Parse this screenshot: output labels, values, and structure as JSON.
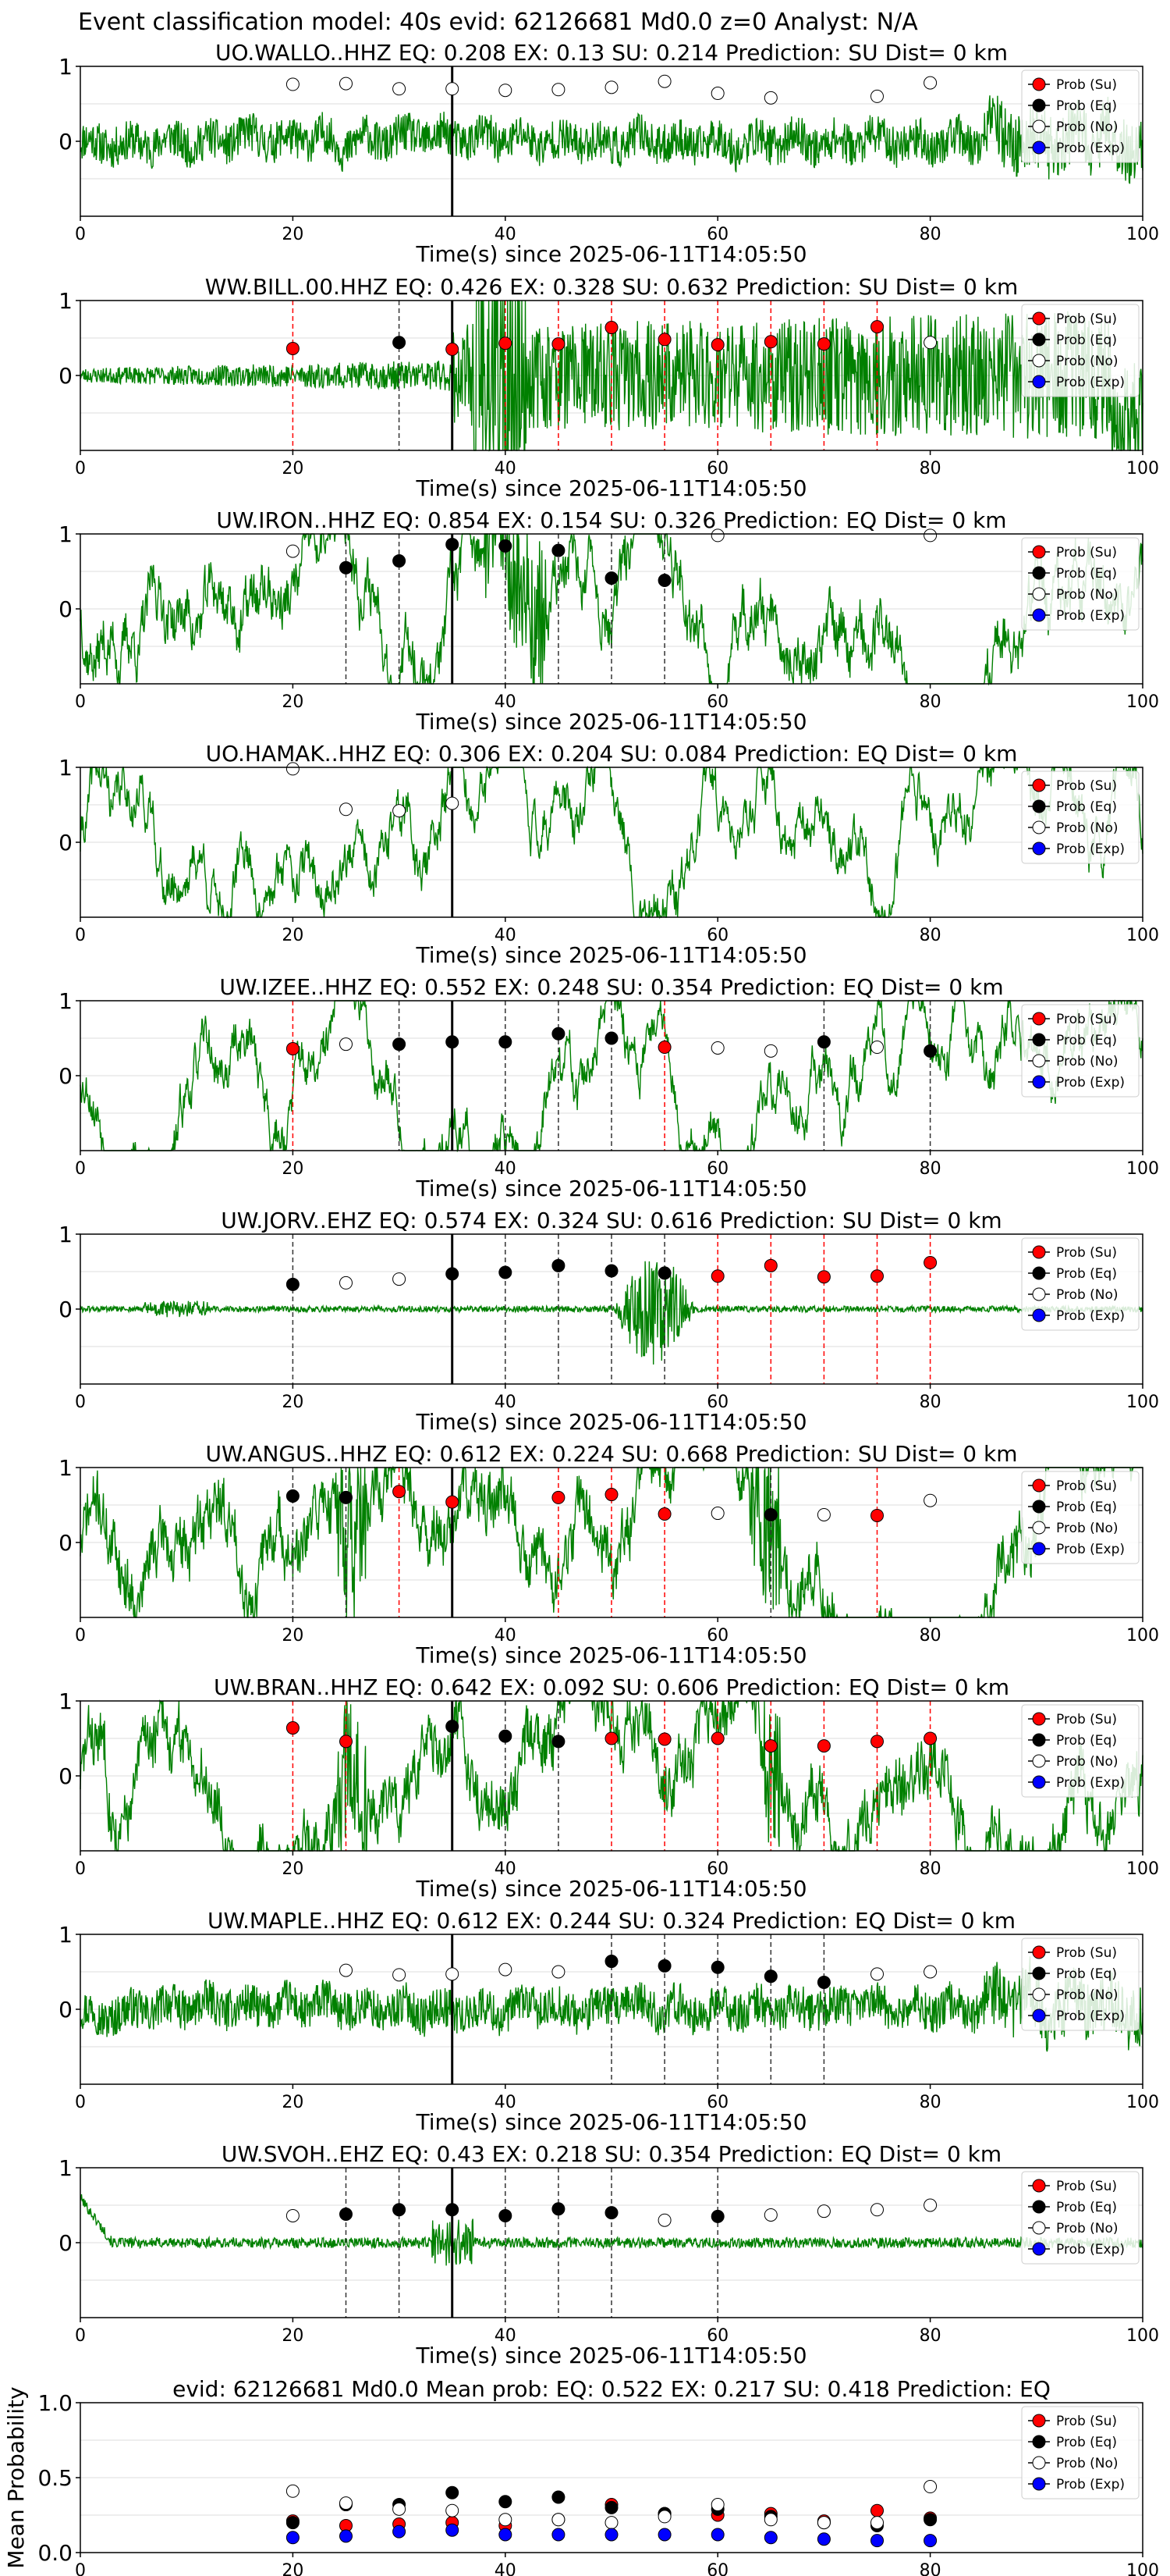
{
  "figure_title": "Event classification model: 40s evid: 62126681 Md0.0 z=0 Analyst: N/A",
  "legend_labels": [
    "Prob (Su)",
    "Prob (Eq)",
    "Prob (No)",
    "Prob (Exp)"
  ],
  "colors": {
    "su": "#ff0000",
    "eq": "#000000",
    "no": "#ffffff",
    "exp": "#0000ff",
    "trace": "#008000",
    "grid": "#dddddd"
  },
  "chart_data": [
    {
      "type": "scatter",
      "panel": "waveform",
      "title": "UO.WALLO..HHZ   EQ: 0.208  EX: 0.13  SU: 0.214   Prediction: SU    Dist= 0 km",
      "xlabel": "Time(s) since 2025-06-11T14:05:50",
      "ylabel": "",
      "xlim": [
        0,
        100
      ],
      "ylim": [
        -1,
        1
      ],
      "xticks": [
        "0",
        "20",
        "40",
        "60",
        "80"
      ],
      "xtick_max": "100",
      "yticks": [
        "1",
        "0"
      ],
      "pick_time": 35,
      "grid": true,
      "legend": "top-right",
      "trace_seed": 11,
      "trace_style": "noise",
      "series": [
        {
          "name": "Prob (No)",
          "x": [
            20,
            25,
            30,
            35,
            40,
            45,
            50,
            55,
            60,
            65,
            75,
            80
          ],
          "values": [
            0.76,
            0.77,
            0.7,
            0.7,
            0.68,
            0.69,
            0.72,
            0.8,
            0.64,
            0.58,
            0.6,
            0.78
          ]
        }
      ],
      "vlines_su": [],
      "vlines_eq": []
    },
    {
      "type": "scatter",
      "panel": "waveform",
      "title": "WW.BILL.00.HHZ   EQ: 0.426  EX: 0.328  SU: 0.632   Prediction: SU    Dist= 0 km",
      "xlabel": "Time(s) since 2025-06-11T14:05:50",
      "ylabel": "",
      "xlim": [
        0,
        100
      ],
      "ylim": [
        -1,
        1
      ],
      "xticks": [
        "0",
        "20",
        "40",
        "60",
        "80"
      ],
      "xtick_max": "100",
      "yticks": [
        "1",
        "0"
      ],
      "pick_time": 35,
      "grid": true,
      "legend": "top-right",
      "trace_seed": 23,
      "trace_style": "growing",
      "series": [
        {
          "name": "Prob (Su)",
          "x": [
            20,
            35,
            40,
            45,
            50,
            55,
            60,
            65,
            70,
            75
          ],
          "values": [
            0.36,
            0.35,
            0.43,
            0.42,
            0.64,
            0.48,
            0.41,
            0.45,
            0.42,
            0.65
          ]
        },
        {
          "name": "Prob (Eq)",
          "x": [
            30
          ],
          "values": [
            0.44
          ]
        },
        {
          "name": "Prob (No)",
          "x": [
            80
          ],
          "values": [
            0.44
          ]
        }
      ],
      "vlines_su": [
        20,
        40,
        45,
        50,
        55,
        60,
        65,
        70,
        75
      ],
      "vlines_eq": [
        30
      ]
    },
    {
      "type": "scatter",
      "panel": "waveform",
      "title": "UW.IRON..HHZ   EQ: 0.854  EX: 0.154  SU: 0.326   Prediction: EQ    Dist= 0 km",
      "xlabel": "Time(s) since 2025-06-11T14:05:50",
      "ylabel": "",
      "xlim": [
        0,
        100
      ],
      "ylim": [
        -1,
        1
      ],
      "xticks": [
        "0",
        "20",
        "40",
        "60",
        "80"
      ],
      "xtick_max": "100",
      "yticks": [
        "1",
        "0"
      ],
      "pick_time": 35,
      "grid": true,
      "legend": "top-right",
      "trace_seed": 37,
      "trace_style": "burst40",
      "series": [
        {
          "name": "Prob (Eq)",
          "x": [
            25,
            30,
            35,
            40,
            45,
            50,
            55
          ],
          "values": [
            0.55,
            0.64,
            0.86,
            0.84,
            0.78,
            0.41,
            0.38
          ]
        },
        {
          "name": "Prob (No)",
          "x": [
            20,
            60,
            80
          ],
          "values": [
            0.77,
            0.98,
            0.98
          ]
        }
      ],
      "vlines_su": [],
      "vlines_eq": [
        25,
        30,
        40,
        45,
        50,
        55
      ]
    },
    {
      "type": "scatter",
      "panel": "waveform",
      "title": "UO.HAMAK..HHZ   EQ: 0.306  EX: 0.204  SU: 0.084   Prediction: EQ    Dist= 0 km",
      "xlabel": "Time(s) since 2025-06-11T14:05:50",
      "ylabel": "",
      "xlim": [
        0,
        100
      ],
      "ylim": [
        -1,
        1
      ],
      "xticks": [
        "0",
        "20",
        "40",
        "60",
        "80"
      ],
      "xtick_max": "100",
      "yticks": [
        "1",
        "0"
      ],
      "pick_time": 35,
      "grid": true,
      "legend": "top-right",
      "trace_seed": 41,
      "trace_style": "wavy",
      "series": [
        {
          "name": "Prob (No)",
          "x": [
            20,
            25,
            30,
            35
          ],
          "values": [
            0.98,
            0.44,
            0.42,
            0.52
          ]
        }
      ],
      "vlines_su": [],
      "vlines_eq": []
    },
    {
      "type": "scatter",
      "panel": "waveform",
      "title": "UW.IZEE..HHZ   EQ: 0.552  EX: 0.248  SU: 0.354   Prediction: EQ    Dist= 0 km",
      "xlabel": "Time(s) since 2025-06-11T14:05:50",
      "ylabel": "",
      "xlim": [
        0,
        100
      ],
      "ylim": [
        -1,
        1
      ],
      "xticks": [
        "0",
        "20",
        "40",
        "60",
        "80"
      ],
      "xtick_max": "100",
      "yticks": [
        "1",
        "0"
      ],
      "pick_time": 35,
      "grid": true,
      "legend": "top-right",
      "trace_seed": 53,
      "trace_style": "wavy",
      "series": [
        {
          "name": "Prob (Su)",
          "x": [
            20,
            55
          ],
          "values": [
            0.36,
            0.38
          ]
        },
        {
          "name": "Prob (Eq)",
          "x": [
            30,
            35,
            40,
            45,
            50,
            70,
            80
          ],
          "values": [
            0.42,
            0.45,
            0.45,
            0.56,
            0.5,
            0.45,
            0.33
          ]
        },
        {
          "name": "Prob (No)",
          "x": [
            25,
            60,
            65,
            75
          ],
          "values": [
            0.42,
            0.37,
            0.33,
            0.38
          ]
        }
      ],
      "vlines_su": [
        20,
        55
      ],
      "vlines_eq": [
        30,
        40,
        45,
        50,
        70,
        80
      ]
    },
    {
      "type": "scatter",
      "panel": "waveform",
      "title": "UW.JORV..EHZ   EQ: 0.574  EX: 0.324  SU: 0.616   Prediction: SU    Dist= 0 km",
      "xlabel": "Time(s) since 2025-06-11T14:05:50",
      "ylabel": "",
      "xlim": [
        0,
        100
      ],
      "ylim": [
        -1,
        1
      ],
      "xticks": [
        "0",
        "20",
        "40",
        "60",
        "80"
      ],
      "xtick_max": "100",
      "yticks": [
        "1",
        "0"
      ],
      "pick_time": 35,
      "grid": true,
      "legend": "top-right",
      "trace_seed": 61,
      "trace_style": "quiet55",
      "series": [
        {
          "name": "Prob (Su)",
          "x": [
            60,
            65,
            70,
            75,
            80
          ],
          "values": [
            0.44,
            0.58,
            0.43,
            0.44,
            0.62
          ]
        },
        {
          "name": "Prob (Eq)",
          "x": [
            20,
            35,
            40,
            45,
            50,
            55
          ],
          "values": [
            0.33,
            0.47,
            0.49,
            0.58,
            0.51,
            0.48
          ]
        },
        {
          "name": "Prob (No)",
          "x": [
            25,
            30
          ],
          "values": [
            0.35,
            0.4
          ]
        }
      ],
      "vlines_su": [
        60,
        65,
        70,
        75,
        80
      ],
      "vlines_eq": [
        20,
        40,
        45,
        50,
        55
      ]
    },
    {
      "type": "scatter",
      "panel": "waveform",
      "title": "UW.ANGUS..HHZ   EQ: 0.612  EX: 0.224  SU: 0.668   Prediction: SU    Dist= 0 km",
      "xlabel": "Time(s) since 2025-06-11T14:05:50",
      "ylabel": "",
      "xlim": [
        0,
        100
      ],
      "ylim": [
        -1,
        1
      ],
      "xticks": [
        "0",
        "20",
        "40",
        "60",
        "80"
      ],
      "xtick_max": "100",
      "yticks": [
        "1",
        "0"
      ],
      "pick_time": 35,
      "grid": true,
      "legend": "top-right",
      "trace_seed": 71,
      "trace_style": "noisywavy",
      "series": [
        {
          "name": "Prob (Su)",
          "x": [
            30,
            35,
            45,
            50,
            55,
            75
          ],
          "values": [
            0.68,
            0.54,
            0.6,
            0.64,
            0.38,
            0.36
          ]
        },
        {
          "name": "Prob (Eq)",
          "x": [
            20,
            25,
            65
          ],
          "values": [
            0.62,
            0.6,
            0.37
          ]
        },
        {
          "name": "Prob (No)",
          "x": [
            60,
            70,
            80
          ],
          "values": [
            0.39,
            0.37,
            0.56
          ]
        }
      ],
      "vlines_su": [
        30,
        45,
        50,
        55,
        75
      ],
      "vlines_eq": [
        20,
        25,
        65
      ]
    },
    {
      "type": "scatter",
      "panel": "waveform",
      "title": "UW.BRAN..HHZ   EQ: 0.642  EX: 0.092  SU: 0.606   Prediction: EQ    Dist= 0 km",
      "xlabel": "Time(s) since 2025-06-11T14:05:50",
      "ylabel": "",
      "xlim": [
        0,
        100
      ],
      "ylim": [
        -1,
        1
      ],
      "xticks": [
        "0",
        "20",
        "40",
        "60",
        "80"
      ],
      "xtick_max": "100",
      "yticks": [
        "1",
        "0"
      ],
      "pick_time": 35,
      "grid": true,
      "legend": "top-right",
      "trace_seed": 83,
      "trace_style": "noisywavy",
      "series": [
        {
          "name": "Prob (Su)",
          "x": [
            20,
            25,
            50,
            55,
            60,
            65,
            70,
            75,
            80
          ],
          "values": [
            0.64,
            0.46,
            0.5,
            0.49,
            0.5,
            0.4,
            0.4,
            0.46,
            0.5
          ]
        },
        {
          "name": "Prob (Eq)",
          "x": [
            35,
            40,
            45
          ],
          "values": [
            0.66,
            0.53,
            0.46
          ]
        }
      ],
      "vlines_su": [
        20,
        25,
        50,
        55,
        60,
        65,
        70,
        75,
        80
      ],
      "vlines_eq": [
        40,
        45
      ]
    },
    {
      "type": "scatter",
      "panel": "waveform",
      "title": "UW.MAPLE..HHZ   EQ: 0.612  EX: 0.244  SU: 0.324   Prediction: EQ    Dist= 0 km",
      "xlabel": "Time(s) since 2025-06-11T14:05:50",
      "ylabel": "",
      "xlim": [
        0,
        100
      ],
      "ylim": [
        -1,
        1
      ],
      "xticks": [
        "0",
        "20",
        "40",
        "60",
        "80"
      ],
      "xtick_max": "100",
      "yticks": [
        "1",
        "0"
      ],
      "pick_time": 35,
      "grid": true,
      "legend": "top-right",
      "trace_seed": 97,
      "trace_style": "noise",
      "series": [
        {
          "name": "Prob (Eq)",
          "x": [
            50,
            55,
            60,
            65,
            70
          ],
          "values": [
            0.64,
            0.58,
            0.56,
            0.44,
            0.36
          ]
        },
        {
          "name": "Prob (No)",
          "x": [
            25,
            30,
            35,
            40,
            45,
            75,
            80
          ],
          "values": [
            0.52,
            0.46,
            0.47,
            0.53,
            0.5,
            0.47,
            0.5
          ]
        }
      ],
      "vlines_su": [],
      "vlines_eq": [
        50,
        55,
        60,
        65,
        70
      ]
    },
    {
      "type": "scatter",
      "panel": "waveform",
      "title": "UW.SVOH..EHZ   EQ: 0.43  EX: 0.218  SU: 0.354   Prediction: EQ    Dist= 0 km",
      "xlabel": "Time(s) since 2025-06-11T14:05:50",
      "ylabel": "",
      "xlim": [
        0,
        100
      ],
      "ylim": [
        -1,
        1
      ],
      "xticks": [
        "0",
        "20",
        "40",
        "60",
        "80"
      ],
      "xtick_max": "100",
      "yticks": [
        "1",
        "0"
      ],
      "pick_time": 35,
      "grid": true,
      "legend": "top-right",
      "trace_seed": 101,
      "trace_style": "quiet",
      "series": [
        {
          "name": "Prob (Eq)",
          "x": [
            25,
            30,
            35,
            40,
            45,
            50,
            60
          ],
          "values": [
            0.38,
            0.44,
            0.44,
            0.36,
            0.45,
            0.4,
            0.35
          ]
        },
        {
          "name": "Prob (No)",
          "x": [
            20,
            55,
            65,
            70,
            75,
            80
          ],
          "values": [
            0.36,
            0.3,
            0.37,
            0.42,
            0.44,
            0.5
          ]
        }
      ],
      "vlines_su": [],
      "vlines_eq": [
        25,
        30,
        40,
        45,
        50,
        60
      ]
    },
    {
      "type": "scatter",
      "panel": "mean",
      "title": "evid: 62126681  Md0.0   Mean prob:   EQ: 0.522  EX: 0.217  SU: 0.418   Prediction: EQ",
      "xlabel": "",
      "ylabel": "Mean Probability",
      "xlim": [
        0,
        100
      ],
      "ylim": [
        0,
        1
      ],
      "xticks": [
        "0",
        "20",
        "40",
        "60",
        "80"
      ],
      "xtick_max": "100",
      "yticks": [
        "1.0",
        "0.5",
        "0.0"
      ],
      "grid": true,
      "legend": "top-right",
      "series": [
        {
          "name": "Prob (Su)",
          "x": [
            20,
            25,
            30,
            35,
            40,
            45,
            50,
            55,
            60,
            65,
            70,
            75,
            80
          ],
          "values": [
            0.21,
            0.18,
            0.19,
            0.2,
            0.18,
            0.22,
            0.32,
            0.26,
            0.25,
            0.26,
            0.21,
            0.28,
            0.23
          ]
        },
        {
          "name": "Prob (Eq)",
          "x": [
            20,
            25,
            30,
            35,
            40,
            45,
            50,
            55,
            60,
            65,
            70,
            75,
            80
          ],
          "values": [
            0.2,
            0.32,
            0.32,
            0.4,
            0.34,
            0.37,
            0.3,
            0.26,
            0.29,
            0.24,
            0.2,
            0.18,
            0.22
          ]
        },
        {
          "name": "Prob (No)",
          "x": [
            20,
            25,
            30,
            35,
            40,
            45,
            50,
            55,
            60,
            65,
            70,
            75,
            80
          ],
          "values": [
            0.41,
            0.33,
            0.29,
            0.28,
            0.22,
            0.22,
            0.2,
            0.24,
            0.32,
            0.22,
            0.2,
            0.2,
            0.44
          ]
        },
        {
          "name": "Prob (Exp)",
          "x": [
            20,
            25,
            30,
            35,
            40,
            45,
            50,
            55,
            60,
            65,
            70,
            75,
            80
          ],
          "values": [
            0.1,
            0.11,
            0.14,
            0.15,
            0.12,
            0.12,
            0.12,
            0.12,
            0.12,
            0.1,
            0.09,
            0.08,
            0.08
          ]
        }
      ]
    }
  ]
}
